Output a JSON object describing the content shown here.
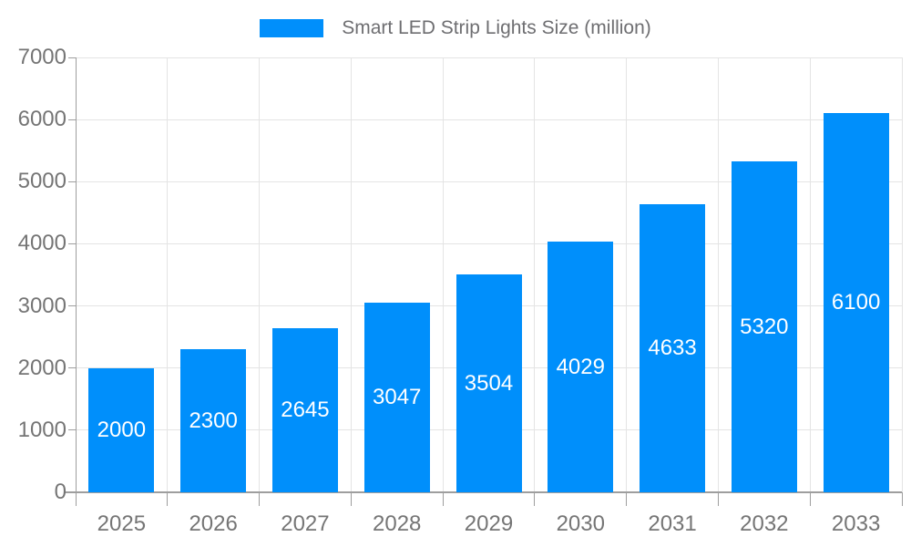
{
  "chart_data": {
    "type": "bar",
    "title": "Smart LED Strip Lights Size (million)",
    "categories": [
      "2025",
      "2026",
      "2027",
      "2028",
      "2029",
      "2030",
      "2031",
      "2032",
      "2033"
    ],
    "values": [
      2000,
      2300,
      2645,
      3047,
      3504,
      4029,
      4633,
      5320,
      6100
    ],
    "value_labels": [
      "2000",
      "2300",
      "2645",
      "3047",
      "3504",
      "4029",
      "4633",
      "5320",
      "6100"
    ],
    "yticks": [
      0,
      1000,
      2000,
      3000,
      4000,
      5000,
      6000,
      7000
    ],
    "ytick_labels": [
      "0",
      "1000",
      "2000",
      "3000",
      "4000",
      "5000",
      "6000",
      "7000"
    ],
    "ylim": [
      0,
      7000
    ],
    "xlabel": "",
    "ylabel": "",
    "grid": true,
    "legend_position": "top",
    "colors": {
      "bar": "#008FFB",
      "bar_label": "#ffffff",
      "axis_line": "#9e9e9e",
      "grid_line": "#e4e4e4",
      "tick_label": "#757575",
      "legend_text": "#6e6e71",
      "background": "#ffffff"
    }
  }
}
